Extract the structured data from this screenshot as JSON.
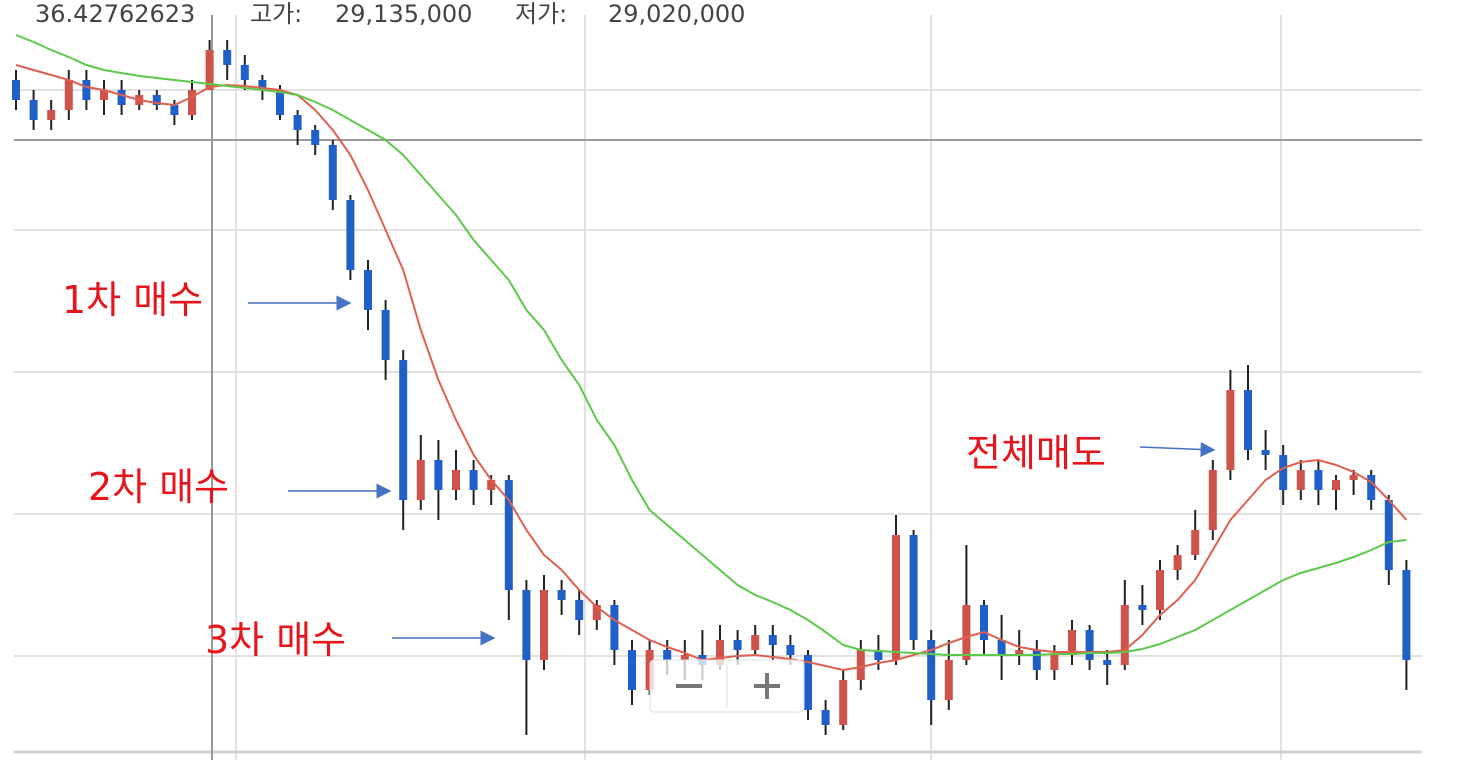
{
  "chart_data": {
    "type": "candlestick",
    "header": [
      "36.42762623",
      "고가:",
      "29,135,000",
      "저가:",
      "29,020,000"
    ],
    "annotations": [
      "1차 매수",
      "2차 매수",
      "3차 매수",
      "전체매도"
    ],
    "ylim": [
      0,
      76
    ],
    "up_color": "#d0534b",
    "down_color": "#1f5fc9",
    "open": [
      68,
      66,
      64,
      65,
      68,
      66,
      67,
      65.5,
      66.5,
      65.5,
      64.5,
      67,
      71,
      69.5,
      68,
      67,
      64.5,
      63,
      61.5,
      56,
      49,
      45,
      40,
      26,
      30,
      27,
      29,
      27,
      28,
      17,
      10,
      17,
      16,
      14,
      15.5,
      11,
      7,
      11,
      10,
      10.5,
      9.5,
      12,
      11,
      12.5,
      11.5,
      10.5,
      5,
      3.5,
      8,
      11,
      10,
      22.5,
      12,
      6,
      10,
      15.5,
      12,
      10.5,
      11,
      9,
      10.5,
      13,
      10,
      9.5,
      15.5,
      15,
      19,
      20.5,
      23,
      29,
      37,
      31,
      30.5,
      27,
      29,
      27,
      28,
      28.5,
      26,
      19
    ],
    "high": [
      69,
      67,
      66,
      69,
      69,
      68,
      68,
      67,
      67,
      66,
      68,
      72,
      72,
      70.5,
      68.5,
      67.5,
      65,
      63.5,
      62,
      56.5,
      50,
      46,
      41,
      32.5,
      32,
      31,
      30,
      28.5,
      28.5,
      18,
      18.5,
      18,
      17,
      16,
      16,
      12,
      12,
      12,
      12,
      13,
      13.5,
      13,
      13.5,
      13.5,
      12.5,
      11,
      6,
      9,
      12,
      12.5,
      24.5,
      23,
      13,
      12,
      21.5,
      16,
      14.5,
      13,
      12,
      11.5,
      14,
      13.5,
      11,
      18,
      17.5,
      20,
      21.5,
      25,
      30,
      39,
      39.5,
      33,
      31.5,
      30,
      30,
      28.5,
      29,
      29,
      26.5,
      20
    ],
    "low": [
      65,
      63,
      63,
      64,
      65,
      64.5,
      64.5,
      65,
      65,
      63.5,
      64,
      67,
      68,
      67,
      66,
      64,
      61.5,
      60.5,
      55,
      48,
      43,
      38,
      23,
      25,
      24,
      26,
      25.5,
      25.5,
      14,
      2.5,
      9,
      14.5,
      12.5,
      13,
      9.5,
      5.5,
      6.5,
      8.5,
      8,
      8,
      9,
      9.5,
      10.5,
      10,
      9.5,
      4,
      2.5,
      3,
      7,
      9,
      9.5,
      11,
      3.5,
      5,
      9.5,
      10.5,
      8,
      9.5,
      8,
      8,
      9.5,
      9,
      7.5,
      9,
      13.5,
      14,
      18,
      20,
      22,
      28,
      30,
      29,
      25.5,
      26,
      25.5,
      25,
      26.5,
      25,
      17.5,
      7
    ],
    "close": [
      66,
      64,
      65,
      68,
      66,
      67,
      65.5,
      66.5,
      65.5,
      64.5,
      67,
      71,
      69.5,
      68,
      67,
      64.5,
      63,
      61.5,
      56,
      49,
      45,
      40,
      26,
      30,
      27,
      29,
      27,
      28,
      17,
      10,
      17,
      16,
      14,
      15.5,
      11,
      7,
      11,
      10,
      10.5,
      9.5,
      12,
      11,
      12.5,
      11.5,
      10.5,
      5,
      3.5,
      8,
      11,
      10,
      22.5,
      12,
      6,
      10,
      15.5,
      12,
      10.5,
      11,
      9,
      10.5,
      13,
      10,
      9.5,
      15.5,
      15,
      19,
      20.5,
      23,
      29,
      37,
      31,
      30.5,
      27,
      29,
      27,
      28,
      28.5,
      26,
      19,
      10
    ],
    "lines": [
      {
        "color": "#e0604f",
        "values": [
          69.5,
          69,
          68.5,
          68,
          67.3,
          67,
          66.5,
          66,
          65.7,
          65.5,
          66.3,
          67.3,
          67.5,
          67.4,
          67.2,
          67,
          66.5,
          65,
          63,
          60.5,
          57,
          53,
          49,
          43,
          38,
          34,
          30.5,
          28,
          26,
          23,
          20.5,
          19,
          17,
          15.3,
          14,
          13,
          12,
          11.3,
          10.7,
          10,
          10.2,
          10.4,
          10.5,
          10.3,
          10.1,
          9.8,
          9.4,
          9,
          9.3,
          9.7,
          10,
          10.5,
          11,
          11.7,
          12.3,
          12.8,
          12,
          11.3,
          11,
          10.8,
          10.8,
          10.8,
          10.8,
          11,
          12.5,
          14.5,
          16,
          18,
          21,
          24,
          26,
          28,
          29.2,
          29.8,
          30,
          29.5,
          28.8,
          27.8,
          26,
          24
        ]
      },
      {
        "color": "#5cc94a",
        "values": [
          72.5,
          71.8,
          71,
          70.3,
          69.5,
          69,
          68.7,
          68.4,
          68.2,
          68,
          67.8,
          67.6,
          67.4,
          67.2,
          67,
          66.8,
          66.5,
          65.8,
          65,
          64,
          63,
          62,
          60.5,
          58.5,
          56.5,
          54.5,
          52,
          50,
          48,
          45,
          43,
          40,
          37.5,
          34,
          31.5,
          28,
          25,
          23.5,
          22,
          20.5,
          19,
          17.5,
          16.5,
          15.8,
          15,
          14,
          12.8,
          11.5,
          11,
          10.9,
          10.8,
          10.7,
          10.6,
          10.5,
          10.5,
          10.5,
          10.5,
          10.5,
          10.5,
          10.6,
          10.6,
          10.7,
          10.7,
          10.8,
          11.1,
          11.6,
          12.3,
          13,
          14,
          15,
          16,
          17,
          18,
          18.7,
          19.2,
          19.7,
          20.3,
          21,
          21.8,
          22
        ]
      }
    ]
  }
}
